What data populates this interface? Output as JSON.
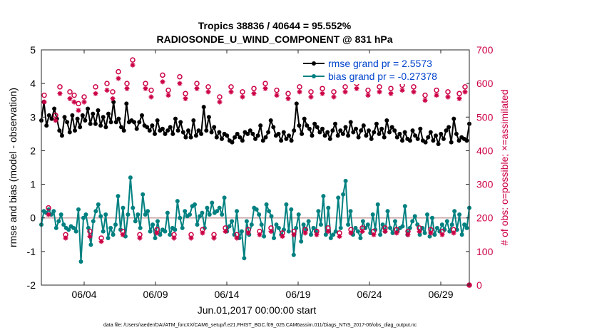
{
  "title_line1": "Tropics 38836 / 40644 = 95.552%",
  "title_line2": "RADIOSONDE_U_WIND_COMPONENT @ 831 hPa",
  "xlabel": "Jun.01,2017 00:00:00 start",
  "ylabel_left": "rmse and bias (model - observation)",
  "ylabel_right": "# of obs: o=possible; ×=assimilated",
  "footnote": "data file: /Users/raeder/DAI/ATM_forcXX/CAM6_setup/f.e21.FHIST_BGC.f09_025.CAM6assim.011/Diags_NTrS_2017-06/obs_diag_output.nc",
  "legend": {
    "rmse": "rmse grand pr = 2.5573",
    "bias": "bias grand pr = -0.27378"
  },
  "colors": {
    "rmse": "#000000",
    "bias": "#008080",
    "obs": "#cc0044",
    "zero": "#c8a0a0"
  },
  "chart_data": {
    "type": "line",
    "x_start_day": 1,
    "x_end_day": 31,
    "x_ticks": [
      {
        "day": 4,
        "label": "06/04"
      },
      {
        "day": 9,
        "label": "06/09"
      },
      {
        "day": 14,
        "label": "06/14"
      },
      {
        "day": 19,
        "label": "06/19"
      },
      {
        "day": 24,
        "label": "06/24"
      },
      {
        "day": 29,
        "label": "06/29"
      }
    ],
    "ylim_left": [
      -2,
      5
    ],
    "yticks_left": [
      -2,
      -1,
      0,
      1,
      2,
      3,
      4,
      5
    ],
    "ylim_right": [
      0,
      700
    ],
    "yticks_right": [
      0,
      100,
      200,
      300,
      400,
      500,
      600,
      700
    ],
    "series": [
      {
        "name": "rmse",
        "axis": "left",
        "values": [
          2.9,
          3.45,
          2.75,
          3.05,
          2.95,
          3.25,
          2.95,
          2.6,
          2.45,
          3.0,
          2.85,
          2.55,
          3.05,
          2.6,
          2.95,
          2.7,
          3.05,
          2.9,
          3.25,
          2.8,
          3.1,
          2.8,
          3.2,
          2.75,
          3.0,
          2.7,
          3.1,
          2.85,
          3.45,
          2.85,
          2.95,
          2.7,
          2.6,
          3.4,
          2.85,
          2.9,
          2.85,
          2.65,
          2.85,
          3.05,
          2.75,
          2.7,
          2.6,
          2.75,
          2.5,
          2.9,
          2.6,
          2.65,
          2.5,
          2.6,
          2.7,
          2.5,
          2.95,
          2.6,
          2.85,
          2.55,
          2.4,
          2.6,
          2.4,
          2.9,
          2.45,
          2.6,
          2.5,
          3.3,
          2.6,
          3.0,
          2.55,
          2.7,
          2.4,
          2.55,
          2.35,
          2.5,
          2.45,
          2.3,
          2.25,
          2.4,
          2.5,
          2.4,
          2.3,
          2.55,
          2.5,
          2.6,
          2.5,
          2.35,
          2.45,
          2.75,
          2.3,
          2.4,
          2.55,
          2.9,
          2.7,
          2.45,
          2.5,
          2.3,
          2.55,
          2.35,
          2.45,
          2.3,
          2.6,
          3.4,
          2.75,
          2.5,
          2.95,
          2.75,
          2.65,
          2.45,
          2.8,
          2.7,
          2.55,
          2.65,
          2.45,
          2.55,
          2.35,
          2.6,
          2.8,
          2.45,
          2.6,
          2.5,
          2.7,
          2.45,
          2.85,
          2.55,
          2.65,
          2.4,
          2.6,
          2.75,
          2.45,
          2.6,
          2.35,
          2.55,
          2.8,
          2.5,
          2.65,
          2.4,
          2.9,
          2.55,
          2.7,
          2.6,
          2.4,
          2.5,
          2.3,
          2.55,
          2.35,
          2.3,
          2.6,
          2.45,
          2.35,
          2.65,
          2.3,
          2.25,
          2.4,
          2.55,
          2.3,
          2.45,
          2.2,
          2.5,
          2.35,
          2.6,
          2.7,
          2.25,
          2.95,
          2.5,
          2.3,
          2.4,
          2.35,
          2.3,
          2.8
        ]
      },
      {
        "name": "bias",
        "axis": "left",
        "values": [
          -0.2,
          0.2,
          0.15,
          0.25,
          0.1,
          0.2,
          -0.3,
          -0.1,
          0.1,
          -0.2,
          -0.3,
          -0.35,
          -0.25,
          -0.3,
          -0.4,
          0.25,
          -1.3,
          0.0,
          0.1,
          -0.3,
          -0.8,
          -0.1,
          0.2,
          0.4,
          0.05,
          -0.4,
          0.1,
          -0.6,
          -0.3,
          -0.5,
          -0.2,
          0.65,
          -0.35,
          0.3,
          -0.55,
          0.1,
          1.2,
          0.3,
          -0.1,
          0.1,
          -0.3,
          0.7,
          0.1,
          0.2,
          -0.4,
          -0.2,
          -0.6,
          -0.1,
          -0.5,
          -0.35,
          -0.4,
          0.15,
          -0.5,
          -0.3,
          -0.35,
          0.5,
          0.0,
          -0.3,
          0.2,
          0.05,
          0.1,
          0.35,
          0.4,
          -0.2,
          0.05,
          0.15,
          -0.3,
          0.3,
          0.1,
          0.45,
          0.15,
          0.2,
          0.3,
          0.1,
          0.6,
          -0.4,
          -0.25,
          -0.1,
          -0.5,
          0.2,
          -0.6,
          -0.4,
          -1.2,
          -0.1,
          -0.5,
          -0.2,
          0.3,
          0.25,
          0.1,
          -0.2,
          -0.55,
          0.4,
          0.2,
          0.05,
          -0.6,
          -0.2,
          -0.3,
          -0.5,
          -0.35,
          0.4,
          -0.4,
          0.25,
          -1.1,
          -0.3,
          0.1,
          -0.7,
          -0.2,
          -0.35,
          -0.1,
          -0.5,
          -0.3,
          -0.4,
          0.2,
          -0.2,
          0.65,
          -0.5,
          0.3,
          -0.6,
          -0.5,
          -0.4,
          0.6,
          -0.3,
          0.7,
          1.1,
          -0.2,
          0.2,
          -0.5,
          -0.3,
          -0.4,
          -0.6,
          -0.1,
          -0.3,
          -0.2,
          -0.45,
          0.1,
          -0.35,
          0.4,
          -0.5,
          -0.2,
          -0.4,
          0.2,
          -0.3,
          -0.45,
          -0.1,
          -0.4,
          -0.3,
          -0.25,
          0.35,
          -0.5,
          -0.3,
          -0.1,
          0.05,
          -0.2,
          -0.5,
          -0.3,
          -0.45,
          0.1,
          -0.55,
          0.0,
          -0.5,
          -0.3,
          -0.4,
          -0.2,
          -0.35,
          -0.1,
          -0.4,
          -0.2,
          0.2,
          -0.35,
          0.1,
          -0.5,
          -0.2,
          -0.3,
          0.3
        ]
      },
      {
        "name": "obs_possible",
        "axis": "right",
        "marker": "o",
        "points": [
          [
            1.2,
            565
          ],
          [
            1.5,
            230
          ],
          [
            2.0,
            505
          ],
          [
            2.3,
            590
          ],
          [
            2.7,
            150
          ],
          [
            3.0,
            575
          ],
          [
            3.3,
            565
          ],
          [
            3.6,
            540
          ],
          [
            4.0,
            560
          ],
          [
            4.4,
            160
          ],
          [
            4.8,
            590
          ],
          [
            5.2,
            140
          ],
          [
            5.6,
            600
          ],
          [
            6.0,
            575
          ],
          [
            6.4,
            635
          ],
          [
            6.7,
            160
          ],
          [
            7.0,
            600
          ],
          [
            7.4,
            670
          ],
          [
            7.9,
            150
          ],
          [
            8.3,
            600
          ],
          [
            8.7,
            580
          ],
          [
            9.1,
            165
          ],
          [
            9.5,
            625
          ],
          [
            9.9,
            580
          ],
          [
            10.3,
            150
          ],
          [
            10.7,
            620
          ],
          [
            11.1,
            570
          ],
          [
            11.5,
            150
          ],
          [
            11.9,
            600
          ],
          [
            12.3,
            165
          ],
          [
            12.7,
            590
          ],
          [
            13.1,
            150
          ],
          [
            13.5,
            560
          ],
          [
            13.9,
            170
          ],
          [
            14.3,
            590
          ],
          [
            14.7,
            150
          ],
          [
            15.1,
            575
          ],
          [
            15.5,
            165
          ],
          [
            15.9,
            585
          ],
          [
            16.3,
            160
          ],
          [
            16.7,
            600
          ],
          [
            17.1,
            170
          ],
          [
            17.5,
            580
          ],
          [
            17.9,
            155
          ],
          [
            18.3,
            570
          ],
          [
            18.7,
            160
          ],
          [
            19.1,
            590
          ],
          [
            19.5,
            165
          ],
          [
            19.9,
            575
          ],
          [
            20.3,
            160
          ],
          [
            20.7,
            585
          ],
          [
            21.1,
            170
          ],
          [
            21.5,
            575
          ],
          [
            21.9,
            155
          ],
          [
            22.3,
            590
          ],
          [
            22.7,
            165
          ],
          [
            23.1,
            600
          ],
          [
            23.5,
            170
          ],
          [
            23.9,
            580
          ],
          [
            24.3,
            160
          ],
          [
            24.7,
            590
          ],
          [
            25.1,
            170
          ],
          [
            25.5,
            585
          ],
          [
            25.9,
            165
          ],
          [
            26.3,
            595
          ],
          [
            26.7,
            160
          ],
          [
            27.1,
            590
          ],
          [
            27.5,
            170
          ],
          [
            27.9,
            565
          ],
          [
            28.3,
            165
          ],
          [
            28.7,
            580
          ],
          [
            29.1,
            160
          ],
          [
            29.5,
            575
          ],
          [
            29.9,
            165
          ],
          [
            30.3,
            570
          ],
          [
            30.7,
            590
          ],
          [
            31.0,
            0
          ]
        ]
      },
      {
        "name": "obs_assimilated",
        "axis": "right",
        "marker": "x",
        "points": [
          [
            1.2,
            545
          ],
          [
            1.5,
            210
          ],
          [
            2.0,
            490
          ],
          [
            2.3,
            570
          ],
          [
            2.7,
            140
          ],
          [
            3.0,
            555
          ],
          [
            3.3,
            545
          ],
          [
            3.6,
            520
          ],
          [
            4.0,
            545
          ],
          [
            4.4,
            145
          ],
          [
            4.8,
            570
          ],
          [
            5.2,
            130
          ],
          [
            5.6,
            580
          ],
          [
            6.0,
            555
          ],
          [
            6.4,
            615
          ],
          [
            6.7,
            150
          ],
          [
            7.0,
            585
          ],
          [
            7.4,
            655
          ],
          [
            7.9,
            140
          ],
          [
            8.3,
            585
          ],
          [
            8.7,
            560
          ],
          [
            9.1,
            155
          ],
          [
            9.5,
            605
          ],
          [
            9.9,
            565
          ],
          [
            10.3,
            140
          ],
          [
            10.7,
            600
          ],
          [
            11.1,
            555
          ],
          [
            11.5,
            140
          ],
          [
            11.9,
            585
          ],
          [
            12.3,
            155
          ],
          [
            12.7,
            575
          ],
          [
            13.1,
            140
          ],
          [
            13.5,
            545
          ],
          [
            13.9,
            160
          ],
          [
            14.3,
            575
          ],
          [
            14.7,
            140
          ],
          [
            15.1,
            560
          ],
          [
            15.5,
            155
          ],
          [
            15.9,
            570
          ],
          [
            16.3,
            150
          ],
          [
            16.7,
            585
          ],
          [
            17.1,
            160
          ],
          [
            17.5,
            565
          ],
          [
            17.9,
            145
          ],
          [
            18.3,
            555
          ],
          [
            18.7,
            150
          ],
          [
            19.1,
            575
          ],
          [
            19.5,
            155
          ],
          [
            19.9,
            560
          ],
          [
            20.3,
            150
          ],
          [
            20.7,
            570
          ],
          [
            21.1,
            160
          ],
          [
            21.5,
            560
          ],
          [
            21.9,
            145
          ],
          [
            22.3,
            575
          ],
          [
            22.7,
            155
          ],
          [
            23.1,
            585
          ],
          [
            23.5,
            160
          ],
          [
            23.9,
            565
          ],
          [
            24.3,
            150
          ],
          [
            24.7,
            575
          ],
          [
            25.1,
            160
          ],
          [
            25.5,
            570
          ],
          [
            25.9,
            155
          ],
          [
            26.3,
            580
          ],
          [
            26.7,
            150
          ],
          [
            27.1,
            575
          ],
          [
            27.5,
            160
          ],
          [
            27.9,
            550
          ],
          [
            28.3,
            155
          ],
          [
            28.7,
            565
          ],
          [
            29.1,
            150
          ],
          [
            29.5,
            560
          ],
          [
            29.9,
            155
          ],
          [
            30.3,
            555
          ],
          [
            30.7,
            575
          ],
          [
            31.0,
            0
          ]
        ]
      }
    ]
  }
}
